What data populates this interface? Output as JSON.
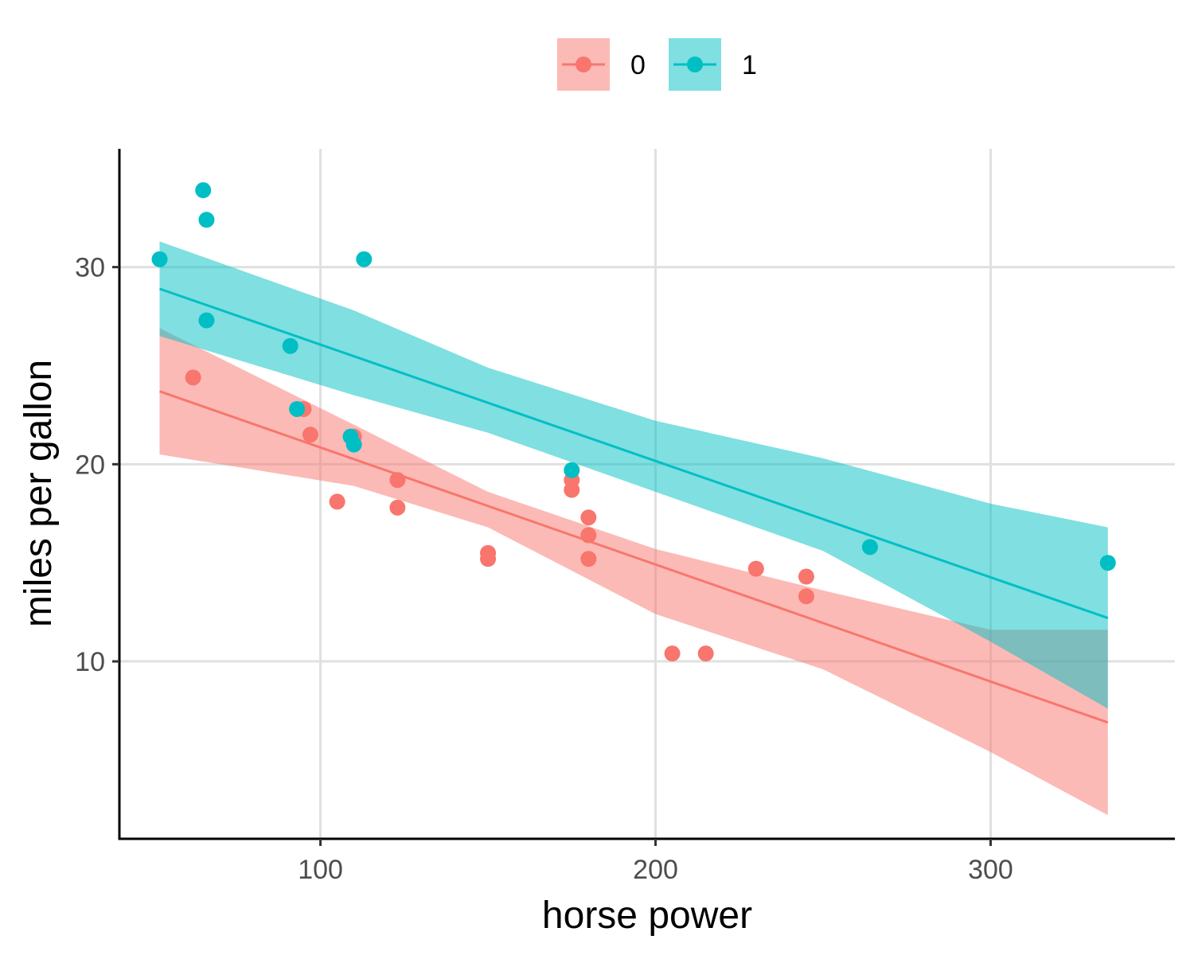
{
  "chart_data": {
    "type": "scatter",
    "xlabel": "horse power",
    "ylabel": "miles per gallon",
    "xlim": [
      40,
      355
    ],
    "ylim": [
      1,
      36
    ],
    "xticks": [
      100,
      200,
      300
    ],
    "yticks": [
      10,
      20,
      30
    ],
    "grid": true,
    "legend_position": "top",
    "series": [
      {
        "name": "0",
        "color": "#F8766D",
        "points": [
          [
            62,
            24.4
          ],
          [
            95,
            22.8
          ],
          [
            97,
            21.5
          ],
          [
            105,
            18.1
          ],
          [
            110,
            21.4
          ],
          [
            123,
            19.2
          ],
          [
            123,
            17.8
          ],
          [
            150,
            15.5
          ],
          [
            150,
            15.2
          ],
          [
            175,
            19.2
          ],
          [
            175,
            18.7
          ],
          [
            180,
            17.3
          ],
          [
            180,
            16.4
          ],
          [
            180,
            15.2
          ],
          [
            205,
            10.4
          ],
          [
            215,
            10.4
          ],
          [
            230,
            14.7
          ],
          [
            245,
            14.3
          ],
          [
            245,
            13.3
          ]
        ],
        "fit": {
          "x": [
            52,
            335
          ],
          "y": [
            23.7,
            6.9
          ],
          "ribbon_lower": [
            [
              52,
              20.5
            ],
            [
              110,
              18.9
            ],
            [
              150,
              16.8
            ],
            [
              200,
              12.4
            ],
            [
              250,
              9.6
            ],
            [
              300,
              5.4
            ],
            [
              335,
              2.2
            ]
          ],
          "ribbon_upper": [
            [
              52,
              26.9
            ],
            [
              110,
              22.0
            ],
            [
              150,
              18.6
            ],
            [
              200,
              15.7
            ],
            [
              250,
              13.6
            ],
            [
              300,
              11.6
            ],
            [
              335,
              11.6
            ]
          ]
        }
      },
      {
        "name": "1",
        "color": "#00BFC4",
        "points": [
          [
            52,
            30.4
          ],
          [
            65,
            33.9
          ],
          [
            66,
            32.4
          ],
          [
            66,
            27.3
          ],
          [
            91,
            26.0
          ],
          [
            93,
            22.8
          ],
          [
            109,
            21.4
          ],
          [
            110,
            21.0
          ],
          [
            113,
            30.4
          ],
          [
            175,
            19.7
          ],
          [
            264,
            15.8
          ],
          [
            335,
            15.0
          ]
        ],
        "fit": {
          "x": [
            52,
            335
          ],
          "y": [
            28.9,
            12.2
          ],
          "ribbon_lower": [
            [
              52,
              26.5
            ],
            [
              110,
              23.5
            ],
            [
              150,
              21.6
            ],
            [
              200,
              18.6
            ],
            [
              250,
              15.6
            ],
            [
              300,
              11.0
            ],
            [
              335,
              7.6
            ]
          ],
          "ribbon_upper": [
            [
              52,
              31.3
            ],
            [
              110,
              27.8
            ],
            [
              150,
              24.9
            ],
            [
              200,
              22.2
            ],
            [
              250,
              20.3
            ],
            [
              300,
              18.0
            ],
            [
              335,
              16.8
            ]
          ]
        }
      }
    ]
  }
}
